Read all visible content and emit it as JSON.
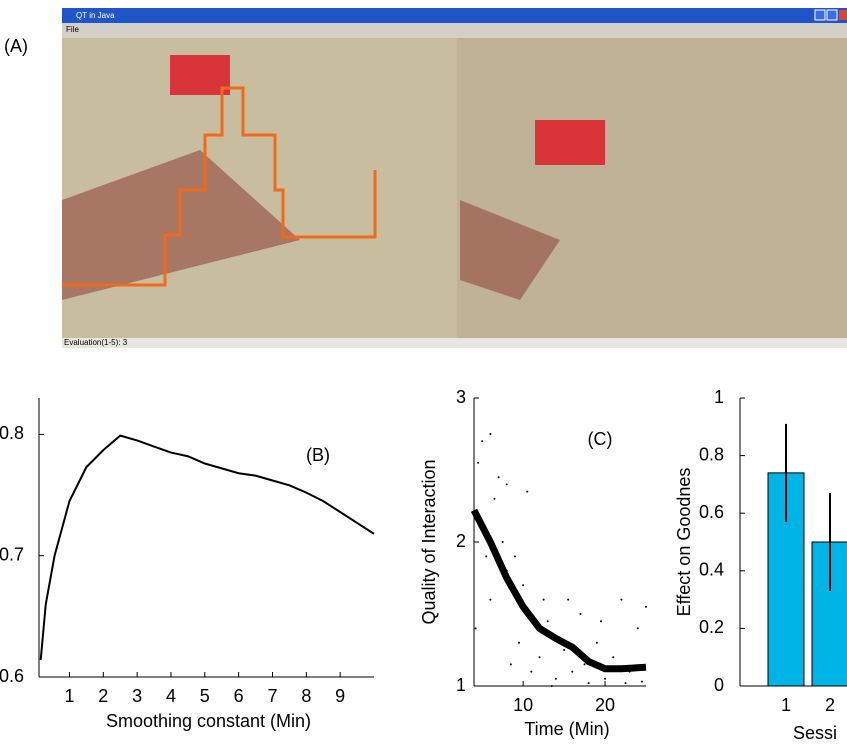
{
  "panel_a": {
    "label": "(A)",
    "window_title": "QT in Java",
    "menu": "File",
    "status": "Evaluation(1-5): 3"
  },
  "chart_data": [
    {
      "type": "line",
      "label": "(B)",
      "xlabel": "Smoothing constant (Min)",
      "color": "#000000",
      "x": [
        0.15,
        0.3,
        0.56,
        1.0,
        1.5,
        2.0,
        2.5,
        3.0,
        3.5,
        4.0,
        4.5,
        5.0,
        5.5,
        6.0,
        6.5,
        7.0,
        7.5,
        8.0,
        8.5,
        9.0,
        9.5,
        10.0
      ],
      "values": [
        0.614,
        0.66,
        0.7,
        0.745,
        0.773,
        0.787,
        0.799,
        0.795,
        0.79,
        0.785,
        0.782,
        0.776,
        0.772,
        0.768,
        0.766,
        0.762,
        0.758,
        0.752,
        0.745,
        0.736,
        0.727,
        0.718
      ],
      "xlim": [
        0.1,
        10
      ],
      "ylim": [
        0.6,
        0.83
      ],
      "xticks": [
        1,
        2,
        3,
        4,
        5,
        6,
        7,
        8,
        9
      ],
      "yticks": [
        0.6,
        0.7,
        0.8
      ]
    },
    {
      "type": "scatter",
      "label": "(C)",
      "xlabel": "Time (Min)",
      "ylabel": "Quality of Interaction",
      "color": "#000000",
      "x": [
        5,
        6,
        4.5,
        7,
        8,
        6.5,
        5,
        7.5,
        9,
        8,
        10,
        11,
        9.5,
        12,
        13,
        14,
        12.5,
        15,
        16,
        17,
        18,
        19,
        20,
        21,
        22,
        23,
        24,
        25,
        24.5,
        11,
        15.5,
        19.5,
        6,
        5.5,
        10.5,
        8.5,
        13.5,
        17.5,
        22.5,
        4.2
      ],
      "values": [
        2.7,
        2.75,
        2.55,
        2.45,
        2.4,
        2.3,
        2.1,
        2.0,
        1.9,
        1.8,
        1.7,
        1.5,
        1.3,
        1.2,
        1.45,
        1.05,
        1.6,
        1.25,
        1.1,
        1.5,
        1.02,
        1.3,
        1.05,
        1.2,
        1.6,
        1.1,
        1.4,
        1.55,
        1.03,
        1.1,
        1.6,
        1.45,
        1.6,
        1.9,
        2.35,
        1.15,
        1.0,
        1.15,
        1.02,
        1.4
      ],
      "trend": {
        "x": [
          4,
          6,
          8,
          10,
          12,
          14,
          16,
          18,
          20,
          22,
          25
        ],
        "values": [
          2.22,
          2.0,
          1.75,
          1.55,
          1.4,
          1.33,
          1.27,
          1.17,
          1.12,
          1.12,
          1.13
        ]
      },
      "xlim": [
        4,
        25
      ],
      "ylim": [
        1,
        3
      ],
      "xticks": [
        10,
        20
      ],
      "yticks": [
        1,
        2,
        3
      ]
    },
    {
      "type": "bar",
      "xlabel": "Sessi",
      "ylabel": "Effect on Goodnes",
      "color": "#00b4e6",
      "categories": [
        "1",
        "2"
      ],
      "values": [
        0.74,
        0.5
      ],
      "errors": [
        0.17,
        0.17
      ],
      "ylim": [
        0,
        1
      ],
      "yticks": [
        0,
        0.2,
        0.4,
        0.6,
        0.8,
        1
      ]
    }
  ]
}
